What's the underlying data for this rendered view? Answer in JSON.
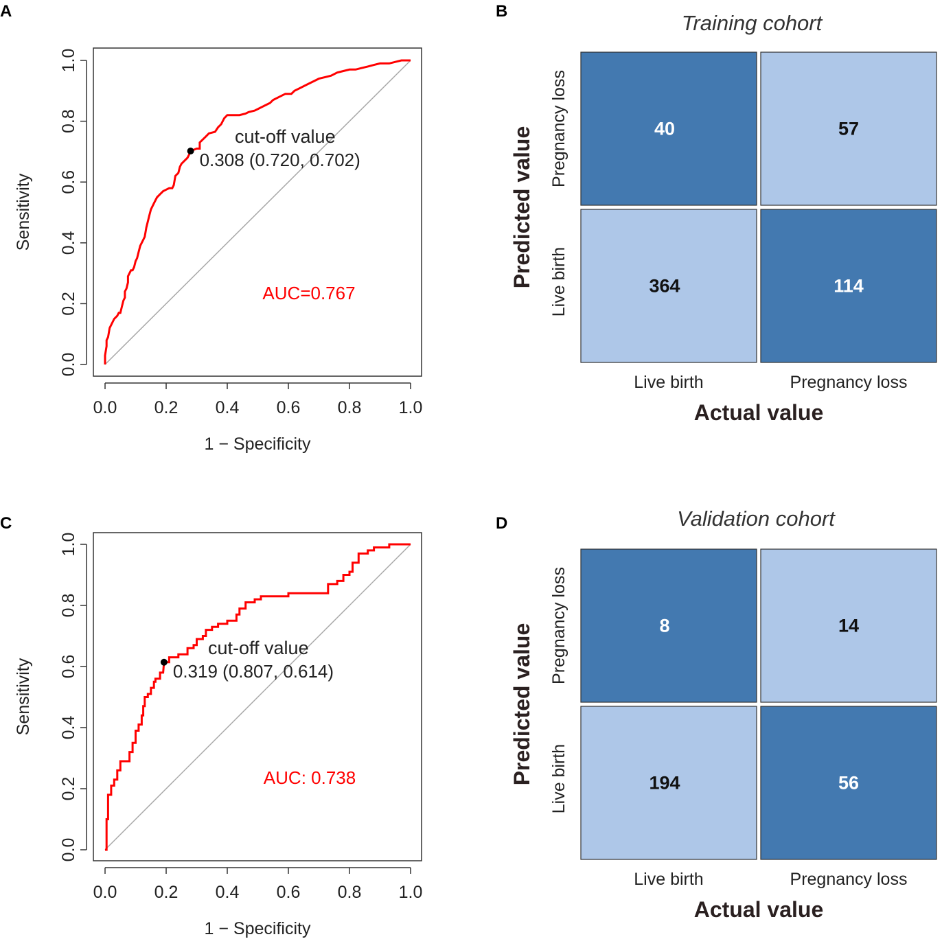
{
  "chart_data": [
    {
      "panel": "A",
      "type": "line",
      "xlabel": "1 − Specificity",
      "ylabel": "Sensitivity",
      "xlim": [
        0,
        1
      ],
      "ylim": [
        0,
        1
      ],
      "x_ticks": [
        "0.0",
        "0.2",
        "0.4",
        "0.6",
        "0.8",
        "1.0"
      ],
      "y_ticks": [
        "0.0",
        "0.2",
        "0.4",
        "0.6",
        "0.8",
        "1.0"
      ],
      "auc_text": "AUC=0.767",
      "cutoff_label": "cut-off value",
      "cutoff_value_text": "0.308 (0.720, 0.702)",
      "cutoff_point": [
        0.28,
        0.702
      ],
      "colors": {
        "roc": "#ff0000",
        "diagonal": "#a8a8a8"
      },
      "roc_points": [
        [
          0,
          0
        ],
        [
          0,
          0.03
        ],
        [
          0.005,
          0.06
        ],
        [
          0.005,
          0.08
        ],
        [
          0.01,
          0.09
        ],
        [
          0.015,
          0.12
        ],
        [
          0.02,
          0.13
        ],
        [
          0.025,
          0.14
        ],
        [
          0.03,
          0.15
        ],
        [
          0.04,
          0.16
        ],
        [
          0.045,
          0.17
        ],
        [
          0.05,
          0.17
        ],
        [
          0.055,
          0.19
        ],
        [
          0.06,
          0.21
        ],
        [
          0.065,
          0.22
        ],
        [
          0.065,
          0.24
        ],
        [
          0.07,
          0.25
        ],
        [
          0.075,
          0.27
        ],
        [
          0.075,
          0.29
        ],
        [
          0.08,
          0.3
        ],
        [
          0.085,
          0.31
        ],
        [
          0.09,
          0.31
        ],
        [
          0.095,
          0.32
        ],
        [
          0.1,
          0.34
        ],
        [
          0.105,
          0.35
        ],
        [
          0.11,
          0.37
        ],
        [
          0.115,
          0.39
        ],
        [
          0.12,
          0.4
        ],
        [
          0.125,
          0.41
        ],
        [
          0.13,
          0.42
        ],
        [
          0.135,
          0.45
        ],
        [
          0.14,
          0.47
        ],
        [
          0.145,
          0.49
        ],
        [
          0.15,
          0.51
        ],
        [
          0.16,
          0.53
        ],
        [
          0.165,
          0.54
        ],
        [
          0.17,
          0.55
        ],
        [
          0.18,
          0.56
        ],
        [
          0.19,
          0.57
        ],
        [
          0.2,
          0.575
        ],
        [
          0.21,
          0.58
        ],
        [
          0.22,
          0.58
        ],
        [
          0.225,
          0.59
        ],
        [
          0.23,
          0.62
        ],
        [
          0.24,
          0.63
        ],
        [
          0.245,
          0.65
        ],
        [
          0.25,
          0.66
        ],
        [
          0.26,
          0.67
        ],
        [
          0.27,
          0.68
        ],
        [
          0.275,
          0.69
        ],
        [
          0.28,
          0.702
        ],
        [
          0.3,
          0.71
        ],
        [
          0.31,
          0.71
        ],
        [
          0.31,
          0.73
        ],
        [
          0.32,
          0.74
        ],
        [
          0.33,
          0.75
        ],
        [
          0.34,
          0.76
        ],
        [
          0.36,
          0.765
        ],
        [
          0.37,
          0.78
        ],
        [
          0.38,
          0.79
        ],
        [
          0.39,
          0.81
        ],
        [
          0.4,
          0.82
        ],
        [
          0.42,
          0.82
        ],
        [
          0.44,
          0.82
        ],
        [
          0.46,
          0.825
        ],
        [
          0.47,
          0.83
        ],
        [
          0.49,
          0.835
        ],
        [
          0.5,
          0.84
        ],
        [
          0.52,
          0.85
        ],
        [
          0.54,
          0.86
        ],
        [
          0.55,
          0.87
        ],
        [
          0.57,
          0.88
        ],
        [
          0.59,
          0.89
        ],
        [
          0.61,
          0.89
        ],
        [
          0.62,
          0.9
        ],
        [
          0.64,
          0.91
        ],
        [
          0.66,
          0.92
        ],
        [
          0.68,
          0.93
        ],
        [
          0.7,
          0.94
        ],
        [
          0.72,
          0.945
        ],
        [
          0.74,
          0.95
        ],
        [
          0.76,
          0.96
        ],
        [
          0.78,
          0.965
        ],
        [
          0.8,
          0.97
        ],
        [
          0.82,
          0.97
        ],
        [
          0.84,
          0.975
        ],
        [
          0.86,
          0.98
        ],
        [
          0.88,
          0.985
        ],
        [
          0.9,
          0.99
        ],
        [
          0.93,
          0.99
        ],
        [
          0.95,
          0.995
        ],
        [
          0.97,
          1
        ],
        [
          1,
          1
        ]
      ]
    },
    {
      "panel": "B",
      "type": "heatmap",
      "title": "Training cohort",
      "xlabel": "Actual value",
      "ylabel": "Predicted value",
      "col_labels": [
        "Live birth",
        "Pregnancy loss"
      ],
      "row_labels": [
        "Pregnancy loss",
        "Live birth"
      ],
      "values": [
        [
          40,
          57
        ],
        [
          364,
          114
        ]
      ],
      "cell_labels": [
        [
          "40",
          "57"
        ],
        [
          "364",
          "114"
        ]
      ],
      "colors": {
        "dark": "#4379b0",
        "light": "#aec7e8"
      }
    },
    {
      "panel": "C",
      "type": "line",
      "xlabel": "1 − Specificity",
      "ylabel": "Sensitivity",
      "xlim": [
        0,
        1
      ],
      "ylim": [
        0,
        1
      ],
      "x_ticks": [
        "0.0",
        "0.2",
        "0.4",
        "0.6",
        "0.8",
        "1.0"
      ],
      "y_ticks": [
        "0.0",
        "0.2",
        "0.4",
        "0.6",
        "0.8",
        "1.0"
      ],
      "auc_text": "AUC: 0.738",
      "cutoff_label": "cut-off value",
      "cutoff_value_text": "0.319 (0.807, 0.614)",
      "cutoff_point": [
        0.193,
        0.614
      ],
      "colors": {
        "roc": "#ff0000",
        "diagonal": "#a8a8a8"
      },
      "roc_points": [
        [
          0,
          0
        ],
        [
          0.005,
          0
        ],
        [
          0.005,
          0.1
        ],
        [
          0.01,
          0.1
        ],
        [
          0.01,
          0.18
        ],
        [
          0.02,
          0.18
        ],
        [
          0.02,
          0.21
        ],
        [
          0.03,
          0.21
        ],
        [
          0.03,
          0.23
        ],
        [
          0.04,
          0.23
        ],
        [
          0.04,
          0.26
        ],
        [
          0.05,
          0.26
        ],
        [
          0.05,
          0.29
        ],
        [
          0.08,
          0.29
        ],
        [
          0.08,
          0.32
        ],
        [
          0.09,
          0.32
        ],
        [
          0.09,
          0.35
        ],
        [
          0.1,
          0.35
        ],
        [
          0.1,
          0.39
        ],
        [
          0.11,
          0.39
        ],
        [
          0.11,
          0.41
        ],
        [
          0.12,
          0.41
        ],
        [
          0.12,
          0.44
        ],
        [
          0.125,
          0.44
        ],
        [
          0.125,
          0.47
        ],
        [
          0.13,
          0.47
        ],
        [
          0.13,
          0.5
        ],
        [
          0.14,
          0.5
        ],
        [
          0.14,
          0.51
        ],
        [
          0.15,
          0.51
        ],
        [
          0.15,
          0.53
        ],
        [
          0.16,
          0.53
        ],
        [
          0.16,
          0.55
        ],
        [
          0.165,
          0.55
        ],
        [
          0.165,
          0.56
        ],
        [
          0.18,
          0.56
        ],
        [
          0.18,
          0.58
        ],
        [
          0.19,
          0.58
        ],
        [
          0.193,
          0.614
        ],
        [
          0.21,
          0.614
        ],
        [
          0.21,
          0.63
        ],
        [
          0.24,
          0.63
        ],
        [
          0.24,
          0.64
        ],
        [
          0.27,
          0.64
        ],
        [
          0.27,
          0.66
        ],
        [
          0.29,
          0.66
        ],
        [
          0.29,
          0.67
        ],
        [
          0.3,
          0.67
        ],
        [
          0.3,
          0.69
        ],
        [
          0.32,
          0.69
        ],
        [
          0.32,
          0.7
        ],
        [
          0.33,
          0.7
        ],
        [
          0.33,
          0.72
        ],
        [
          0.35,
          0.72
        ],
        [
          0.35,
          0.73
        ],
        [
          0.37,
          0.73
        ],
        [
          0.37,
          0.74
        ],
        [
          0.4,
          0.74
        ],
        [
          0.4,
          0.75
        ],
        [
          0.43,
          0.75
        ],
        [
          0.43,
          0.77
        ],
        [
          0.44,
          0.77
        ],
        [
          0.44,
          0.79
        ],
        [
          0.46,
          0.79
        ],
        [
          0.46,
          0.81
        ],
        [
          0.49,
          0.81
        ],
        [
          0.49,
          0.82
        ],
        [
          0.51,
          0.82
        ],
        [
          0.51,
          0.83
        ],
        [
          0.6,
          0.83
        ],
        [
          0.6,
          0.84
        ],
        [
          0.73,
          0.84
        ],
        [
          0.73,
          0.87
        ],
        [
          0.76,
          0.87
        ],
        [
          0.76,
          0.88
        ],
        [
          0.78,
          0.88
        ],
        [
          0.78,
          0.9
        ],
        [
          0.8,
          0.9
        ],
        [
          0.8,
          0.91
        ],
        [
          0.81,
          0.91
        ],
        [
          0.81,
          0.94
        ],
        [
          0.83,
          0.94
        ],
        [
          0.83,
          0.97
        ],
        [
          0.86,
          0.97
        ],
        [
          0.86,
          0.98
        ],
        [
          0.88,
          0.98
        ],
        [
          0.88,
          0.99
        ],
        [
          0.93,
          0.99
        ],
        [
          0.93,
          1
        ],
        [
          1,
          1
        ]
      ]
    },
    {
      "panel": "D",
      "type": "heatmap",
      "title": "Validation cohort",
      "xlabel": "Actual value",
      "ylabel": "Predicted value",
      "col_labels": [
        "Live birth",
        "Pregnancy loss"
      ],
      "row_labels": [
        "Pregnancy loss",
        "Live birth"
      ],
      "values": [
        [
          8,
          14
        ],
        [
          194,
          56
        ]
      ],
      "cell_labels": [
        [
          "8",
          "14"
        ],
        [
          "194",
          "56"
        ]
      ],
      "colors": {
        "dark": "#4379b0",
        "light": "#aec7e8"
      }
    }
  ]
}
